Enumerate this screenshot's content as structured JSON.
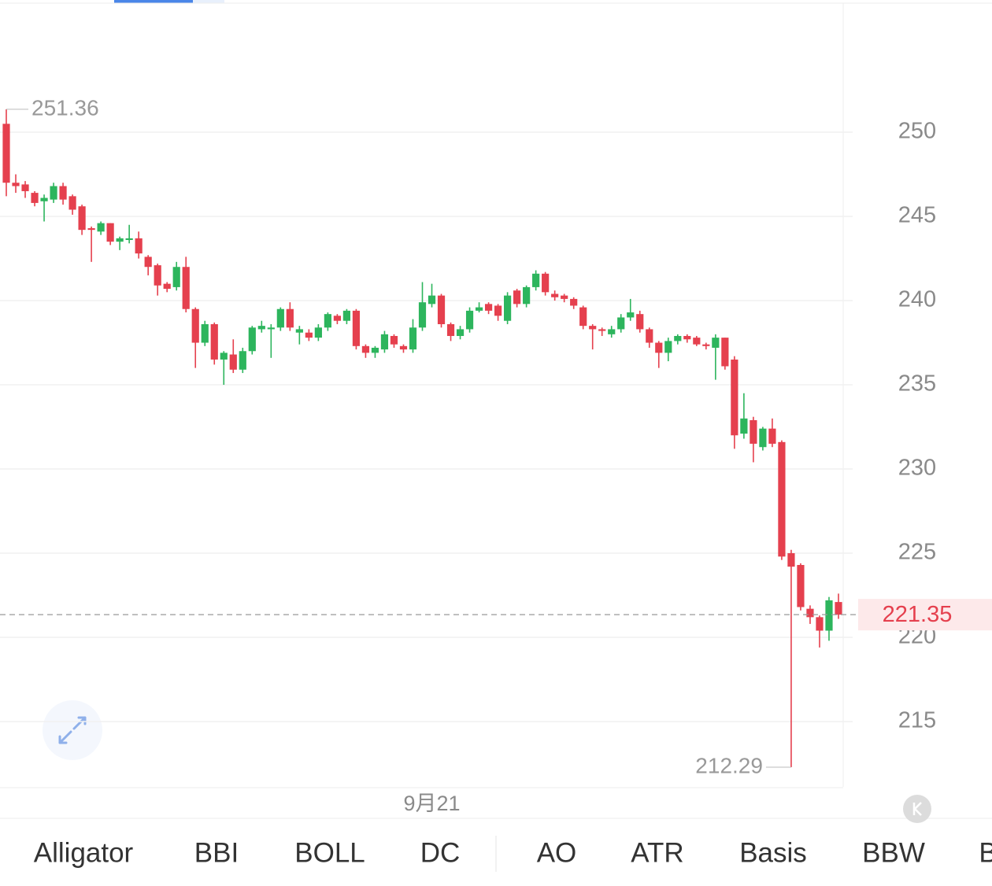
{
  "chart_data": {
    "type": "candlestick",
    "categories": [
      null,
      null,
      null,
      null,
      null,
      null,
      null,
      null,
      null,
      null,
      null,
      null,
      null,
      null,
      null,
      null,
      null,
      null,
      null,
      null,
      null,
      null,
      null,
      null,
      null,
      null,
      null,
      null,
      null,
      null,
      null,
      null,
      null,
      null,
      null,
      null,
      null,
      null,
      null,
      null,
      null,
      null,
      null,
      null,
      null,
      "9月21",
      null,
      null,
      null,
      null,
      null,
      null,
      null,
      null,
      null,
      null,
      null,
      null,
      null,
      null,
      null,
      null,
      null,
      null,
      null,
      null,
      null,
      null,
      null,
      null,
      null,
      null,
      null,
      null,
      null,
      null,
      null,
      null,
      null,
      null,
      null,
      null,
      null,
      null,
      null,
      null,
      null,
      null,
      null
    ],
    "open": [
      250.5,
      247.0,
      246.9,
      246.4,
      245.9,
      246.0,
      246.8,
      246.2,
      245.6,
      244.3,
      244.1,
      244.6,
      243.5,
      243.6,
      243.7,
      242.6,
      242.1,
      241.0,
      240.8,
      242.0,
      239.5,
      237.5,
      238.6,
      236.5,
      236.8,
      235.9,
      237.0,
      238.3,
      238.3,
      238.4,
      239.5,
      238.1,
      238.1,
      237.8,
      238.4,
      239.1,
      238.8,
      239.4,
      237.3,
      236.9,
      237.1,
      237.9,
      237.3,
      237.1,
      238.4,
      239.8,
      240.3,
      238.6,
      237.9,
      238.3,
      239.4,
      239.8,
      239.7,
      238.8,
      240.6,
      239.8,
      240.8,
      241.6,
      240.4,
      240.3,
      240.1,
      239.6,
      238.5,
      238.3,
      238.0,
      238.3,
      239.0,
      239.2,
      238.3,
      237.5,
      236.9,
      237.6,
      237.9,
      237.8,
      237.4,
      237.2,
      237.8,
      236.5,
      232.1,
      232.9,
      231.3,
      232.4,
      231.6,
      225.0,
      224.3,
      221.7,
      221.2,
      220.4,
      222.1
    ],
    "high": [
      251.36,
      247.5,
      247.1,
      246.5,
      246.3,
      247.0,
      247.0,
      246.3,
      245.7,
      244.4,
      244.7,
      244.6,
      243.8,
      244.5,
      244.1,
      242.7,
      242.2,
      241.1,
      242.3,
      242.6,
      239.6,
      238.8,
      238.7,
      237.0,
      237.7,
      237.2,
      238.5,
      238.8,
      238.6,
      239.6,
      239.9,
      238.5,
      238.3,
      238.6,
      239.3,
      239.2,
      239.5,
      239.5,
      237.4,
      237.3,
      238.2,
      238.0,
      237.4,
      238.9,
      241.1,
      241.0,
      240.4,
      238.7,
      238.5,
      239.6,
      239.9,
      239.9,
      239.8,
      240.5,
      240.7,
      240.9,
      241.8,
      241.7,
      240.6,
      240.4,
      240.2,
      239.7,
      238.6,
      238.4,
      238.5,
      239.2,
      240.1,
      239.4,
      238.4,
      237.6,
      237.8,
      238.0,
      238.0,
      237.9,
      237.5,
      238.0,
      237.8,
      236.7,
      234.5,
      233.1,
      232.5,
      233.0,
      231.7,
      225.2,
      224.4,
      221.9,
      221.3,
      222.4,
      222.6
    ],
    "low": [
      246.2,
      246.4,
      246.1,
      245.6,
      244.7,
      245.8,
      245.7,
      245.1,
      243.9,
      242.3,
      243.9,
      243.3,
      243.0,
      243.4,
      242.5,
      241.5,
      240.3,
      240.5,
      240.6,
      239.3,
      236.0,
      237.3,
      236.2,
      235.0,
      235.7,
      235.7,
      236.8,
      238.1,
      236.6,
      238.2,
      238.2,
      237.4,
      237.6,
      237.6,
      238.2,
      238.6,
      238.6,
      237.1,
      236.6,
      236.6,
      236.9,
      237.2,
      236.9,
      236.9,
      238.2,
      239.6,
      238.4,
      237.6,
      237.7,
      238.1,
      239.3,
      239.2,
      238.8,
      238.6,
      239.6,
      239.6,
      240.6,
      240.3,
      240.0,
      239.9,
      239.5,
      238.3,
      237.1,
      237.9,
      237.8,
      238.1,
      238.8,
      238.1,
      237.2,
      236.0,
      236.4,
      237.4,
      237.5,
      237.3,
      237.1,
      235.3,
      235.9,
      231.2,
      231.8,
      230.4,
      231.1,
      231.3,
      224.6,
      212.29,
      221.6,
      220.8,
      219.4,
      219.8,
      221.1
    ],
    "close": [
      247.0,
      246.8,
      246.5,
      245.8,
      246.1,
      246.8,
      246.0,
      245.4,
      244.2,
      244.2,
      244.6,
      243.5,
      243.7,
      243.7,
      242.8,
      242.0,
      240.9,
      240.7,
      242.0,
      239.5,
      237.5,
      238.6,
      236.5,
      236.9,
      235.9,
      237.0,
      238.4,
      238.5,
      238.4,
      239.5,
      238.4,
      238.3,
      237.8,
      238.4,
      239.2,
      238.8,
      239.4,
      237.3,
      236.9,
      237.2,
      238.0,
      237.4,
      237.1,
      238.4,
      239.9,
      240.3,
      238.6,
      237.9,
      238.3,
      239.4,
      239.6,
      239.4,
      239.1,
      240.3,
      239.8,
      240.8,
      241.6,
      240.5,
      240.2,
      240.1,
      239.7,
      238.5,
      238.3,
      238.2,
      238.3,
      239.0,
      239.3,
      238.3,
      237.5,
      236.9,
      237.6,
      237.9,
      237.7,
      237.4,
      237.3,
      237.8,
      236.1,
      232.0,
      233.0,
      231.5,
      232.4,
      231.5,
      224.8,
      224.2,
      221.8,
      221.2,
      220.4,
      222.2,
      221.35
    ],
    "up_color": "#2db55d",
    "down_color": "#e5404e",
    "ylim": [
      211.1,
      257.6
    ],
    "yticks": [
      215,
      220,
      225,
      230,
      235,
      240,
      245,
      250
    ],
    "grid": true,
    "indicator_tabs": [
      "Alligator",
      "BBI",
      "BOLL",
      "DC",
      "AO",
      "ATR",
      "Basis",
      "BBW",
      "B"
    ]
  }
}
